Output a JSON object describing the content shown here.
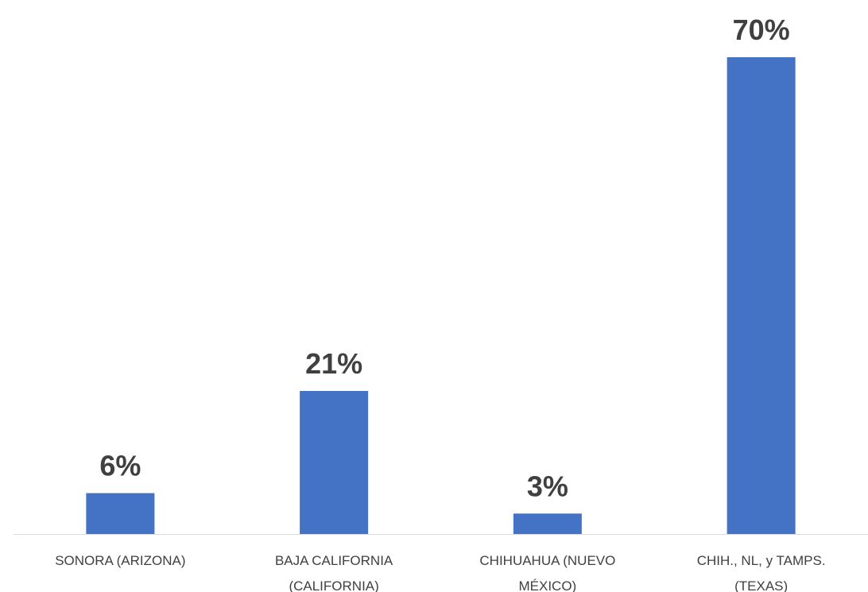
{
  "chart_data": {
    "type": "bar",
    "categories": [
      "SONORA (ARIZONA)",
      "BAJA CALIFORNIA (CALIFORNIA)",
      "CHIHUAHUA (NUEVO MÉXICO)",
      "CHIH., NL, y TAMPS. (TEXAS)"
    ],
    "values": [
      6,
      21,
      3,
      70
    ],
    "value_labels": [
      "6%",
      "21%",
      "3%",
      "70%"
    ],
    "color": "#4472c4"
  }
}
